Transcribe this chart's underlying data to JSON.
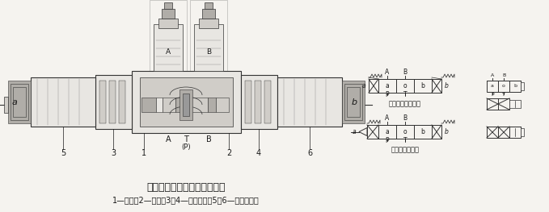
{
  "title": "直动式比例方向节流阀的结构",
  "subtitle": "1—阀体；2—阀芯；3、4—对中弹簧；5、6—比例电磁铁",
  "bg_color": "#f5f3ef",
  "text_color": "#1a1a1a",
  "title_fontsize": 9,
  "subtitle_fontsize": 7,
  "caption_right1": "不带集成式放大板",
  "caption_right2": "带集成式放大板",
  "lw_main": 0.8,
  "lw_thin": 0.5,
  "lw_thick": 1.2,
  "gray_light": "#e8e6e2",
  "gray_mid": "#d0cdc8",
  "gray_dark": "#b0ada8",
  "ec_main": "#333333",
  "ec_light": "#555555"
}
